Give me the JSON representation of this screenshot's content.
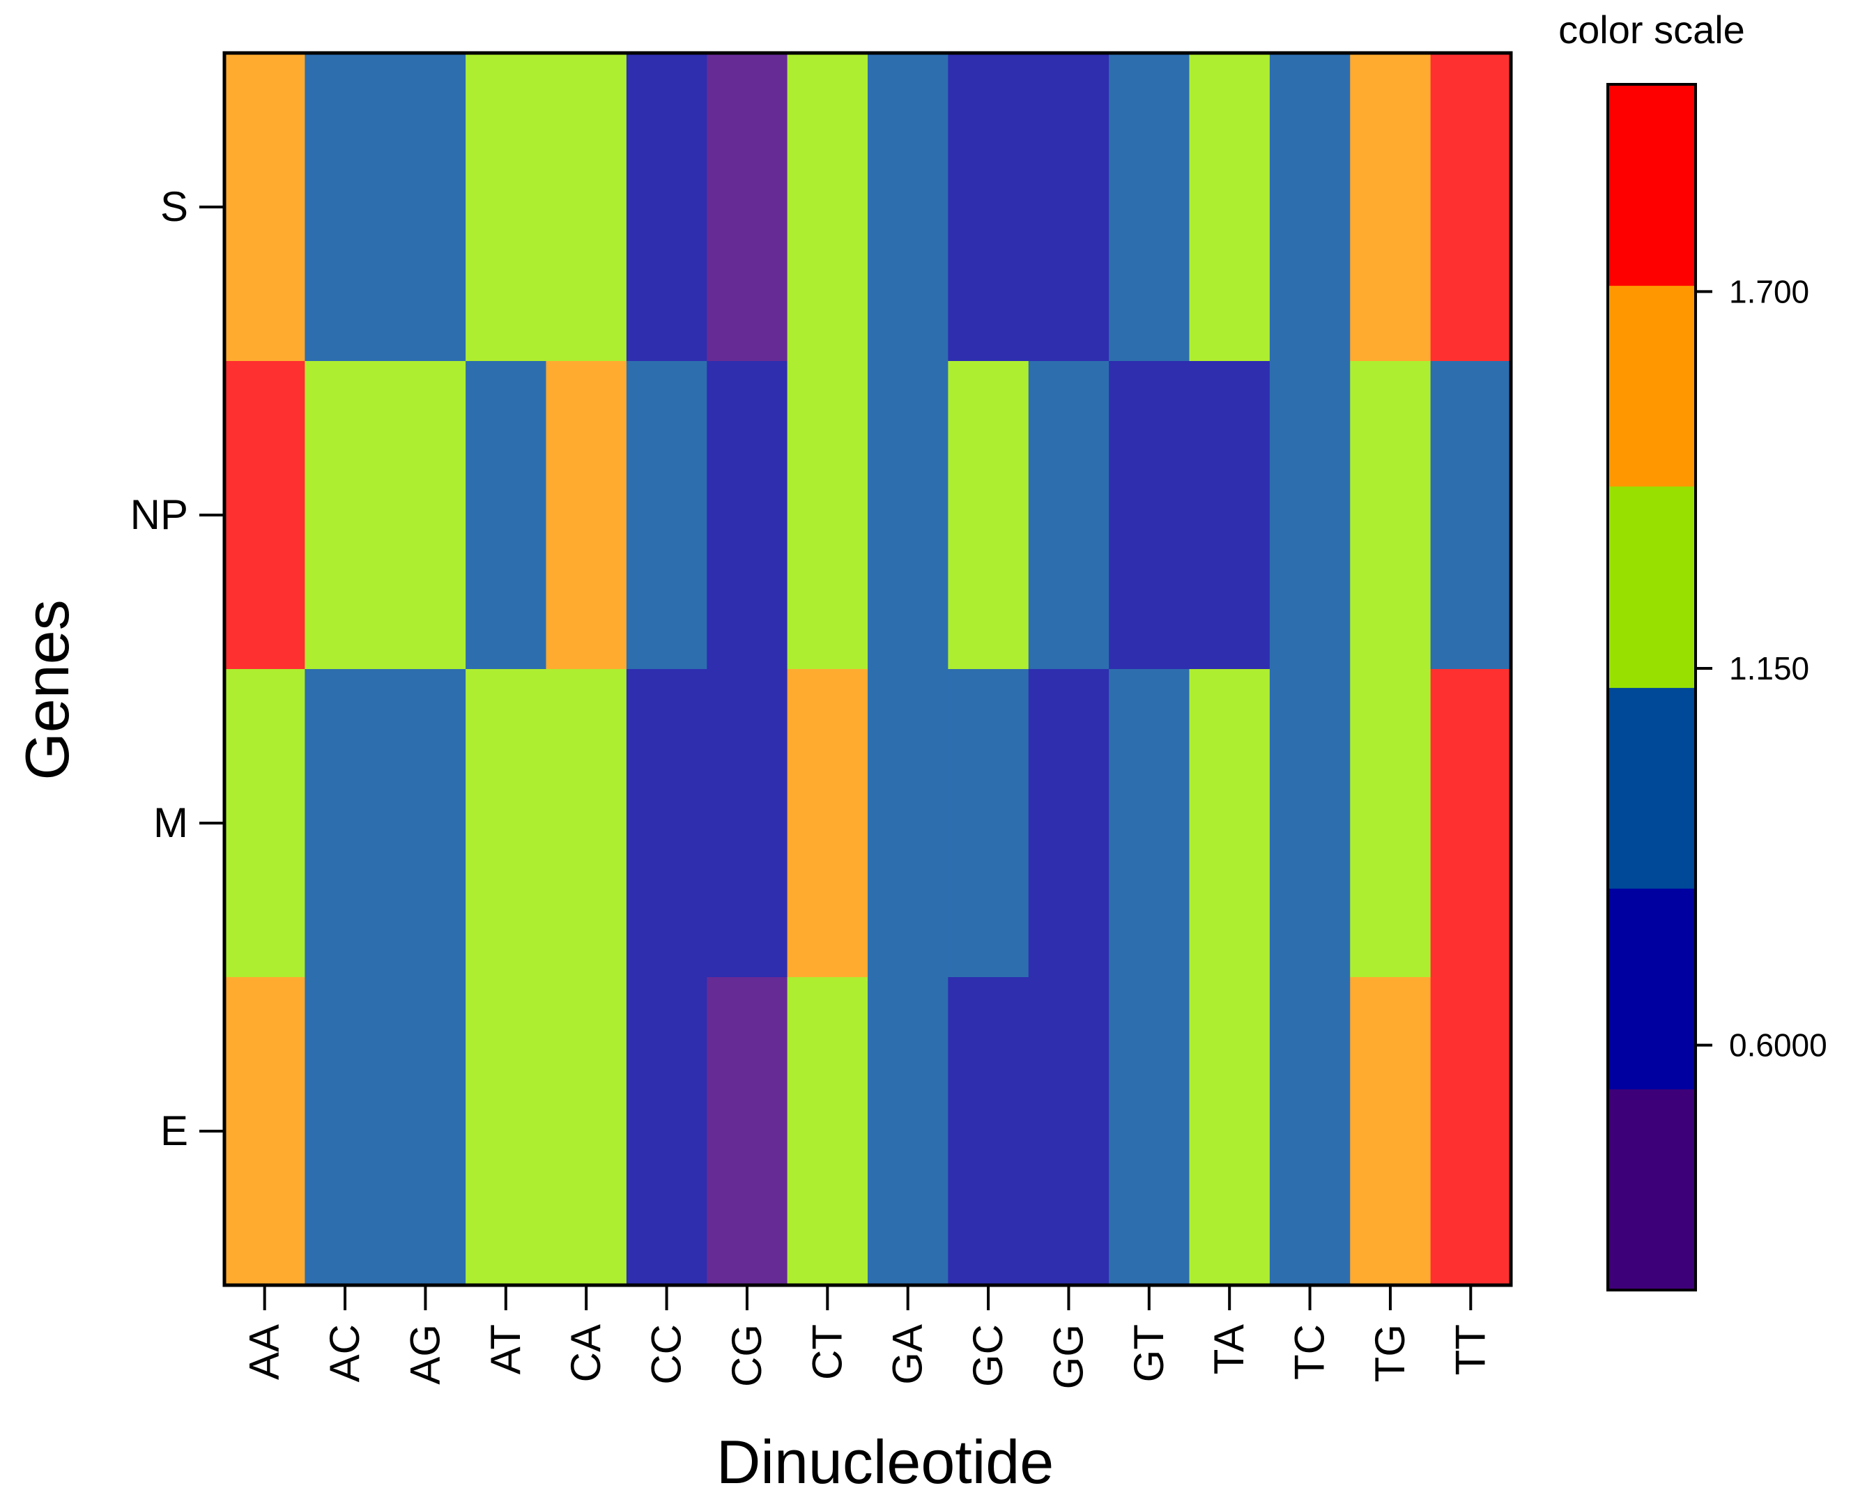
{
  "chart_data": {
    "type": "heatmap",
    "xlabel": "Dinucleotide",
    "ylabel": "Genes",
    "x_categories": [
      "AA",
      "AC",
      "AG",
      "AT",
      "CA",
      "CC",
      "CG",
      "CT",
      "GA",
      "GC",
      "GG",
      "GT",
      "TA",
      "TC",
      "TG",
      "TT"
    ],
    "y_categories": [
      "S",
      "NP",
      "M",
      "E"
    ],
    "values": [
      [
        1.53,
        1.0,
        1.0,
        1.25,
        1.25,
        0.62,
        0.35,
        1.25,
        1.0,
        0.62,
        0.62,
        1.0,
        1.25,
        1.0,
        1.53,
        1.8
      ],
      [
        1.8,
        1.25,
        1.25,
        1.0,
        1.53,
        1.0,
        0.62,
        1.25,
        1.0,
        1.25,
        1.0,
        0.62,
        0.62,
        1.0,
        1.25,
        1.0
      ],
      [
        1.25,
        1.0,
        1.0,
        1.25,
        1.25,
        0.62,
        0.62,
        1.53,
        1.0,
        1.0,
        0.62,
        1.0,
        1.25,
        1.0,
        1.25,
        1.8
      ],
      [
        1.53,
        1.0,
        1.0,
        1.25,
        1.25,
        0.62,
        0.35,
        1.25,
        1.0,
        0.62,
        0.62,
        1.0,
        1.25,
        1.0,
        1.53,
        1.8
      ]
    ],
    "colorbar": {
      "title": "color scale",
      "range": [
        0.2425,
        2.0025
      ],
      "boundaries": [
        0.2425,
        0.536,
        0.829,
        1.122,
        1.416,
        1.709,
        2.0025
      ],
      "band_colors": [
        "#3e0078",
        "#0000a0",
        "#004898",
        "#98e000",
        "#ff9800",
        "#ff0000"
      ],
      "tick_values": [
        0.6,
        1.15,
        1.7
      ],
      "tick_labels": [
        "0.6000",
        "1.150",
        "1.700"
      ]
    },
    "cell_colors": [
      "#672b96",
      "#2e2eaf",
      "#2d6eaf",
      "#aeee30",
      "#ffab30",
      "#ff3030"
    ]
  }
}
